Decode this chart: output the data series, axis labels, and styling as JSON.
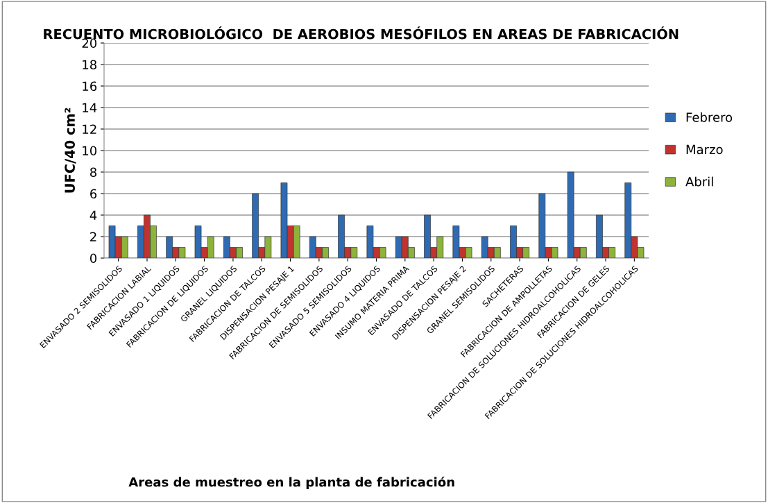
{
  "chart_data": {
    "type": "bar",
    "title": "RECUENTO MICROBIOLÓGICO  DE AEROBIOS MESÓFILOS EN AREAS DE FABRICACIÓN",
    "xlabel": "Areas de muestreo en la planta de fabricación",
    "ylabel": "UFC/40 cm²",
    "categories": [
      "ENVASADO 2 SEMISOLIDOS",
      "FABRICACION LABIAL",
      "ENVASADO 1 LIQUIDOS",
      "FABRICACION DE LIQUIDOS",
      "GRANEL LIQUIDOS",
      "FABRICACION DE TALCOS",
      "DISPENSACION PESAJE 1",
      "FABRICACION DE SEMISOLIDOS",
      "ENVASADO 5 SEMISOLIDOS",
      "ENVASADO 4 LIQUIDOS",
      "INSUMO MATERIA PRIMA",
      "ENVASADO DE TALCOS",
      "DISPENSACION PESAJE 2",
      "GRANEL SEMISOLIDOS",
      "SACHETERAS",
      "FABRICACION DE AMPOLLETAS",
      "FABRICACION DE SOLUCIONES HIDROALCOHOLICAS",
      "FABRICACION DE GELES",
      "FABRICACION DE SOLUCIONES HIDROALCOHOLICAS"
    ],
    "series": [
      {
        "name": "Febrero",
        "color": "#2f6bb3",
        "values": [
          3,
          3,
          2,
          3,
          2,
          6,
          7,
          2,
          4,
          3,
          2,
          4,
          3,
          2,
          3,
          6,
          8,
          4,
          7
        ]
      },
      {
        "name": "Marzo",
        "color": "#c0332e",
        "values": [
          2,
          4,
          1,
          1,
          1,
          1,
          3,
          1,
          1,
          1,
          2,
          1,
          1,
          1,
          1,
          1,
          1,
          1,
          2
        ]
      },
      {
        "name": "Abril",
        "color": "#8db33a",
        "values": [
          2,
          3,
          1,
          2,
          1,
          2,
          3,
          1,
          1,
          1,
          1,
          2,
          1,
          1,
          1,
          1,
          1,
          1,
          1
        ]
      }
    ],
    "ylim": [
      0,
      20
    ],
    "yticks": [
      0,
      2,
      4,
      6,
      8,
      10,
      12,
      14,
      16,
      18,
      20
    ],
    "grid": "y",
    "legend": "right"
  }
}
